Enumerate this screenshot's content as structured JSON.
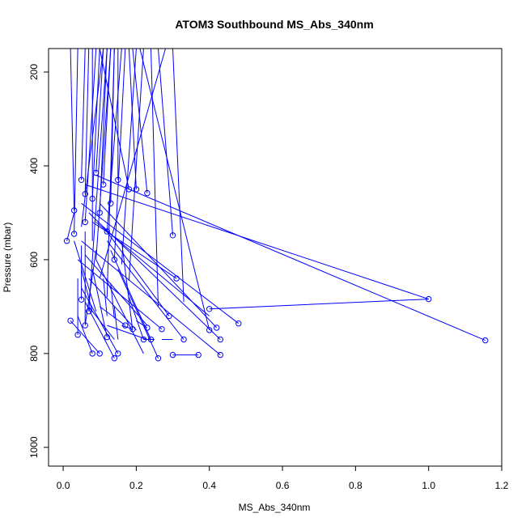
{
  "chart_data": {
    "type": "line",
    "title": "ATOM3 Southbound MS_Abs_340nm",
    "xlabel": "MS_Abs_340nm",
    "ylabel": "Pressure (mbar)",
    "xlim": [
      -0.04,
      1.2
    ],
    "ylim": [
      1040,
      150
    ],
    "y_reversed": true,
    "grid": false,
    "color": "#0000ff",
    "marker": "open-circle",
    "x_ticks": [
      0.0,
      0.2,
      0.4,
      0.6,
      0.8,
      1.0,
      1.2
    ],
    "x_tick_labels": [
      "0.0",
      "0.2",
      "0.4",
      "0.6",
      "0.8",
      "1.0",
      "1.2"
    ],
    "y_ticks": [
      200,
      400,
      600,
      800,
      1000
    ],
    "y_tick_labels": [
      "200",
      "400",
      "600",
      "800",
      "1000"
    ],
    "profiles": [
      {
        "x": [
          0.02,
          0.03
        ],
        "y": [
          150,
          495
        ]
      },
      {
        "x": [
          0.04,
          0.03
        ],
        "y": [
          150,
          545
        ]
      },
      {
        "x": [
          0.06,
          0.05
        ],
        "y": [
          150,
          430
        ]
      },
      {
        "x": [
          0.07,
          0.06
        ],
        "y": [
          150,
          460
        ]
      },
      {
        "x": [
          0.09,
          0.06
        ],
        "y": [
          150,
          520
        ]
      },
      {
        "x": [
          0.1,
          0.08
        ],
        "y": [
          150,
          470
        ]
      },
      {
        "x": [
          0.11,
          0.09
        ],
        "y": [
          150,
          415
        ]
      },
      {
        "x": [
          0.12,
          0.1
        ],
        "y": [
          150,
          500
        ]
      },
      {
        "x": [
          0.13,
          0.11
        ],
        "y": [
          150,
          440
        ]
      },
      {
        "x": [
          0.14,
          0.13
        ],
        "y": [
          150,
          480
        ]
      },
      {
        "x": [
          0.15,
          0.15
        ],
        "y": [
          150,
          430
        ]
      },
      {
        "x": [
          0.16,
          0.12
        ],
        "y": [
          150,
          540
        ]
      },
      {
        "x": [
          0.17,
          0.14
        ],
        "y": [
          150,
          600
        ]
      },
      {
        "x": [
          0.18,
          0.2
        ],
        "y": [
          150,
          450
        ]
      },
      {
        "x": [
          0.19,
          0.23
        ],
        "y": [
          150,
          458
        ]
      },
      {
        "x": [
          0.2,
          0.16
        ],
        "y": [
          150,
          610
        ]
      },
      {
        "x": [
          0.22,
          0.18
        ],
        "y": [
          150,
          645
        ]
      },
      {
        "x": [
          0.24,
          0.26
        ],
        "y": [
          150,
          700
        ]
      },
      {
        "x": [
          0.26,
          0.3
        ],
        "y": [
          150,
          548
        ]
      },
      {
        "x": [
          0.28,
          0.1
        ],
        "y": [
          150,
          640
        ]
      },
      {
        "x": [
          0.3,
          0.33
        ],
        "y": [
          150,
          690
        ]
      },
      {
        "x": [
          0.1,
          0.18
        ],
        "y": [
          150,
          450
        ]
      },
      {
        "x": [
          0.14,
          0.12
        ],
        "y": [
          150,
          680
        ]
      },
      {
        "x": [
          0.12,
          0.07
        ],
        "y": [
          150,
          710
        ]
      },
      {
        "x": [
          0.11,
          0.05
        ],
        "y": [
          150,
          530
        ]
      },
      {
        "x": [
          0.13,
          0.09
        ],
        "y": [
          150,
          600
        ]
      },
      {
        "x": [
          0.21,
          0.4
        ],
        "y": [
          150,
          750
        ]
      },
      {
        "x": [
          0.08,
          0.08
        ],
        "y": [
          150,
          560
        ]
      },
      {
        "x": [
          0.03,
          0.01
        ],
        "y": [
          500,
          560
        ]
      },
      {
        "x": [
          0.06,
          1.0,
          0.4
        ],
        "y": [
          440,
          684,
          705
        ]
      },
      {
        "x": [
          0.09,
          1.155
        ],
        "y": [
          420,
          772
        ]
      },
      {
        "x": [
          0.05,
          0.48
        ],
        "y": [
          480,
          736
        ]
      },
      {
        "x": [
          0.07,
          0.43
        ],
        "y": [
          500,
          770
        ]
      },
      {
        "x": [
          0.1,
          0.42
        ],
        "y": [
          480,
          745
        ]
      },
      {
        "x": [
          0.05,
          0.43
        ],
        "y": [
          560,
          803
        ]
      },
      {
        "x": [
          0.09,
          0.4
        ],
        "y": [
          520,
          720
        ]
      },
      {
        "x": [
          0.12,
          0.33
        ],
        "y": [
          560,
          770
        ]
      },
      {
        "x": [
          0.04,
          0.27
        ],
        "y": [
          600,
          748
        ]
      },
      {
        "x": [
          0.08,
          0.31
        ],
        "y": [
          520,
          640
        ]
      },
      {
        "x": [
          0.06,
          0.23
        ],
        "y": [
          590,
          740
        ]
      },
      {
        "x": [
          0.11,
          0.29
        ],
        "y": [
          530,
          720
        ]
      },
      {
        "x": [
          0.13,
          0.24
        ],
        "y": [
          580,
          770
        ]
      },
      {
        "x": [
          0.07,
          0.2
        ],
        "y": [
          640,
          750
        ]
      },
      {
        "x": [
          0.09,
          0.22
        ],
        "y": [
          600,
          800
        ]
      },
      {
        "x": [
          0.15,
          0.26
        ],
        "y": [
          620,
          810
        ]
      },
      {
        "x": [
          0.05,
          0.15
        ],
        "y": [
          660,
          800
        ]
      },
      {
        "x": [
          0.03,
          0.09
        ],
        "y": [
          560,
          710
        ]
      },
      {
        "x": [
          0.06,
          0.14
        ],
        "y": [
          690,
          810
        ]
      },
      {
        "x": [
          0.1,
          0.17
        ],
        "y": [
          700,
          740
        ]
      },
      {
        "x": [
          0.02,
          0.1
        ],
        "y": [
          730,
          800
        ]
      },
      {
        "x": [
          0.04,
          0.08
        ],
        "y": [
          720,
          800
        ]
      },
      {
        "x": [
          0.04,
          0.04
        ],
        "y": [
          640,
          760
        ]
      },
      {
        "x": [
          0.16,
          0.19
        ],
        "y": [
          560,
          750
        ]
      },
      {
        "x": [
          0.14,
          0.15
        ],
        "y": [
          700,
          770
        ]
      },
      {
        "x": [
          0.18,
          0.22
        ],
        "y": [
          680,
          770
        ]
      },
      {
        "x": [
          0.12,
          0.23
        ],
        "y": [
          740,
          770
        ]
      },
      {
        "x": [
          0.05,
          0.05
        ],
        "y": [
          570,
          685
        ]
      },
      {
        "x": [
          0.06,
          0.06
        ],
        "y": [
          540,
          736
        ]
      },
      {
        "x": [
          0.09,
          0.06
        ],
        "y": [
          580,
          740
        ]
      },
      {
        "x": [
          0.08,
          0.12
        ],
        "y": [
          620,
          765
        ]
      },
      {
        "x": [
          0.11,
          0.12
        ],
        "y": [
          640,
          720
        ]
      },
      {
        "x": [
          0.07,
          0.14
        ],
        "y": [
          700,
          770
        ]
      },
      {
        "x": [
          0.13,
          0.14
        ],
        "y": [
          650,
          725
        ]
      },
      {
        "x": [
          0.05,
          0.08
        ],
        "y": [
          620,
          712
        ]
      },
      {
        "x": [
          0.3,
          0.37
        ],
        "y": [
          803,
          803
        ]
      },
      {
        "x": [
          0.22,
          0.25
        ],
        "y": [
          770,
          770
        ]
      },
      {
        "x": [
          0.27,
          0.3
        ],
        "y": [
          770,
          770
        ]
      },
      {
        "x": [
          0.16,
          0.19
        ],
        "y": [
          740,
          748
        ]
      },
      {
        "x": [
          0.2,
          0.23
        ],
        "y": [
          730,
          745
        ]
      }
    ],
    "points": [
      {
        "x": 0.01,
        "y": 560
      },
      {
        "x": 0.02,
        "y": 730
      },
      {
        "x": 0.03,
        "y": 495
      },
      {
        "x": 0.03,
        "y": 545
      },
      {
        "x": 0.04,
        "y": 760
      },
      {
        "x": 0.05,
        "y": 685
      },
      {
        "x": 0.05,
        "y": 430
      },
      {
        "x": 0.06,
        "y": 460
      },
      {
        "x": 0.06,
        "y": 520
      },
      {
        "x": 0.06,
        "y": 740
      },
      {
        "x": 0.07,
        "y": 710
      },
      {
        "x": 0.08,
        "y": 470
      },
      {
        "x": 0.08,
        "y": 800
      },
      {
        "x": 0.09,
        "y": 415
      },
      {
        "x": 0.1,
        "y": 500
      },
      {
        "x": 0.1,
        "y": 800
      },
      {
        "x": 0.11,
        "y": 440
      },
      {
        "x": 0.12,
        "y": 765
      },
      {
        "x": 0.13,
        "y": 480
      },
      {
        "x": 0.14,
        "y": 810
      },
      {
        "x": 0.15,
        "y": 430
      },
      {
        "x": 0.15,
        "y": 800
      },
      {
        "x": 0.12,
        "y": 540
      },
      {
        "x": 0.14,
        "y": 600
      },
      {
        "x": 0.17,
        "y": 740
      },
      {
        "x": 0.18,
        "y": 450
      },
      {
        "x": 0.19,
        "y": 748
      },
      {
        "x": 0.2,
        "y": 450
      },
      {
        "x": 0.22,
        "y": 770
      },
      {
        "x": 0.23,
        "y": 458
      },
      {
        "x": 0.23,
        "y": 745
      },
      {
        "x": 0.24,
        "y": 770
      },
      {
        "x": 0.26,
        "y": 810
      },
      {
        "x": 0.27,
        "y": 748
      },
      {
        "x": 0.29,
        "y": 720
      },
      {
        "x": 0.3,
        "y": 548
      },
      {
        "x": 0.3,
        "y": 803
      },
      {
        "x": 0.31,
        "y": 640
      },
      {
        "x": 0.33,
        "y": 770
      },
      {
        "x": 0.37,
        "y": 803
      },
      {
        "x": 0.4,
        "y": 705
      },
      {
        "x": 0.4,
        "y": 750
      },
      {
        "x": 0.42,
        "y": 745
      },
      {
        "x": 0.43,
        "y": 770
      },
      {
        "x": 0.43,
        "y": 803
      },
      {
        "x": 0.48,
        "y": 736
      },
      {
        "x": 1.0,
        "y": 684
      },
      {
        "x": 1.155,
        "y": 772
      }
    ]
  }
}
